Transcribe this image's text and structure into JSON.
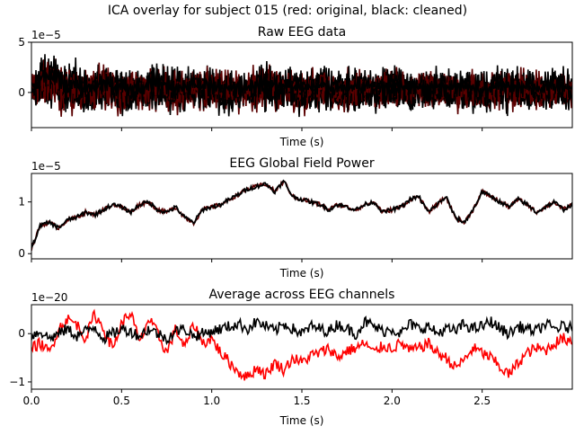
{
  "suptitle": "ICA overlay for subject 015 (red: original, black: cleaned)",
  "colors": {
    "original": "#ff0000",
    "cleaned": "#000000",
    "axes": "#000000",
    "background": "#ffffff"
  },
  "chart_data": [
    {
      "type": "line",
      "title": "Raw EEG data",
      "xlabel": "Time (s)",
      "ylabel": "",
      "offset_text": "1e−5",
      "xlim": [
        0,
        3.0
      ],
      "ylim": [
        -3.5,
        5.0
      ],
      "xticks": [
        0.0,
        0.5,
        1.0,
        1.5,
        2.0,
        2.5
      ],
      "xtick_labels": [],
      "yticks": [
        0,
        5
      ],
      "ytick_labels": [
        "0",
        "5"
      ],
      "note": "multi-channel traces overlaid, roughly -3 to 4.5 (x1e-5)",
      "series": [
        {
          "color_key": "original",
          "values_x": [
            0.0,
            0.1,
            0.2,
            0.3,
            0.4,
            0.5,
            0.6,
            0.7,
            0.8,
            0.9,
            1.0,
            1.1,
            1.2,
            1.3,
            1.4,
            1.5,
            1.6,
            1.7,
            1.8,
            1.9,
            2.0,
            2.1,
            2.2,
            2.3,
            2.4,
            2.5,
            2.6,
            2.7,
            2.8,
            2.9,
            3.0
          ],
          "band_top": [
            3.2,
            4.5,
            3.8,
            2.9,
            3.5,
            3.1,
            2.8,
            3.6,
            3.2,
            2.9,
            3.3,
            3.0,
            2.7,
            3.9,
            3.1,
            2.8,
            3.2,
            2.6,
            3.0,
            2.9,
            3.5,
            2.7,
            3.1,
            2.8,
            3.0,
            2.6,
            3.2,
            2.9,
            2.7,
            3.0,
            2.8
          ],
          "band_bottom": [
            -2.3,
            -2.1,
            -2.8,
            -2.5,
            -2.3,
            -2.6,
            -2.2,
            -2.4,
            -2.9,
            -2.2,
            -2.5,
            -2.6,
            -2.3,
            -2.7,
            -2.5,
            -2.6,
            -2.3,
            -2.4,
            -2.6,
            -2.2,
            -2.5,
            -2.3,
            -2.4,
            -2.2,
            -2.5,
            -2.6,
            -2.4,
            -2.3,
            -2.5,
            -2.2,
            -2.4
          ]
        }
      ]
    },
    {
      "type": "line",
      "title": "EEG Global Field Power",
      "xlabel": "Time (s)",
      "ylabel": "",
      "offset_text": "1e−5",
      "xlim": [
        0,
        3.0
      ],
      "ylim": [
        -0.1,
        1.55
      ],
      "xticks": [
        0.0,
        0.5,
        1.0,
        1.5,
        2.0,
        2.5
      ],
      "xtick_labels": [],
      "yticks": [
        0,
        1
      ],
      "ytick_labels": [
        "0",
        "1"
      ],
      "series": [
        {
          "name": "",
          "color_key": "original",
          "x": [
            0.0,
            0.05,
            0.1,
            0.15,
            0.2,
            0.25,
            0.3,
            0.35,
            0.4,
            0.45,
            0.5,
            0.55,
            0.6,
            0.65,
            0.7,
            0.75,
            0.8,
            0.85,
            0.9,
            0.95,
            1.0,
            1.05,
            1.1,
            1.15,
            1.2,
            1.25,
            1.3,
            1.35,
            1.4,
            1.45,
            1.5,
            1.55,
            1.6,
            1.65,
            1.7,
            1.75,
            1.8,
            1.85,
            1.9,
            1.95,
            2.0,
            2.05,
            2.1,
            2.15,
            2.2,
            2.25,
            2.3,
            2.35,
            2.4,
            2.45,
            2.5,
            2.55,
            2.6,
            2.65,
            2.7,
            2.75,
            2.8,
            2.85,
            2.9,
            2.95,
            3.0
          ],
          "values": [
            0.1,
            0.55,
            0.6,
            0.5,
            0.65,
            0.7,
            0.8,
            0.75,
            0.85,
            0.95,
            0.9,
            0.8,
            0.95,
            1.0,
            0.85,
            0.8,
            0.9,
            0.7,
            0.6,
            0.85,
            0.9,
            0.95,
            1.05,
            1.15,
            1.25,
            1.3,
            1.35,
            1.2,
            1.4,
            1.1,
            1.05,
            1.0,
            0.95,
            0.85,
            0.95,
            0.9,
            0.85,
            0.95,
            1.0,
            0.8,
            0.85,
            0.9,
            1.05,
            1.1,
            0.8,
            0.95,
            1.1,
            0.7,
            0.6,
            0.85,
            1.2,
            1.1,
            1.0,
            0.9,
            1.05,
            0.95,
            0.8,
            0.9,
            1.0,
            0.85,
            0.95
          ]
        },
        {
          "name": "",
          "color_key": "cleaned",
          "x": [
            0.0,
            0.05,
            0.1,
            0.15,
            0.2,
            0.25,
            0.3,
            0.35,
            0.4,
            0.45,
            0.5,
            0.55,
            0.6,
            0.65,
            0.7,
            0.75,
            0.8,
            0.85,
            0.9,
            0.95,
            1.0,
            1.05,
            1.1,
            1.15,
            1.2,
            1.25,
            1.3,
            1.35,
            1.4,
            1.45,
            1.5,
            1.55,
            1.6,
            1.65,
            1.7,
            1.75,
            1.8,
            1.85,
            1.9,
            1.95,
            2.0,
            2.05,
            2.1,
            2.15,
            2.2,
            2.25,
            2.3,
            2.35,
            2.4,
            2.45,
            2.5,
            2.55,
            2.6,
            2.65,
            2.7,
            2.75,
            2.8,
            2.85,
            2.9,
            2.95,
            3.0
          ],
          "values": [
            0.1,
            0.55,
            0.6,
            0.5,
            0.65,
            0.7,
            0.8,
            0.75,
            0.85,
            0.95,
            0.9,
            0.8,
            0.95,
            1.0,
            0.85,
            0.8,
            0.9,
            0.7,
            0.6,
            0.85,
            0.9,
            0.95,
            1.05,
            1.15,
            1.25,
            1.3,
            1.35,
            1.2,
            1.4,
            1.1,
            1.05,
            1.0,
            0.95,
            0.85,
            0.95,
            0.9,
            0.85,
            0.95,
            1.0,
            0.8,
            0.85,
            0.9,
            1.05,
            1.1,
            0.8,
            0.95,
            1.1,
            0.7,
            0.6,
            0.85,
            1.2,
            1.1,
            1.0,
            0.9,
            1.05,
            0.95,
            0.8,
            0.9,
            1.0,
            0.85,
            0.95
          ]
        }
      ]
    },
    {
      "type": "line",
      "title": "Average across EEG channels",
      "xlabel": "Time (s)",
      "ylabel": "",
      "offset_text": "1e−20",
      "xlim": [
        0,
        3.0
      ],
      "ylim": [
        -1.15,
        0.6
      ],
      "xticks": [
        0.0,
        0.5,
        1.0,
        1.5,
        2.0,
        2.5
      ],
      "xtick_labels": [
        "0.0",
        "0.5",
        "1.0",
        "1.5",
        "2.0",
        "2.5"
      ],
      "yticks": [
        -1,
        0
      ],
      "ytick_labels": [
        "−1",
        "0"
      ],
      "series": [
        {
          "name": "",
          "color_key": "original",
          "x": [
            0.0,
            0.05,
            0.1,
            0.15,
            0.2,
            0.25,
            0.3,
            0.35,
            0.4,
            0.45,
            0.5,
            0.55,
            0.6,
            0.65,
            0.7,
            0.75,
            0.8,
            0.85,
            0.9,
            0.95,
            1.0,
            1.05,
            1.1,
            1.15,
            1.2,
            1.25,
            1.3,
            1.35,
            1.4,
            1.45,
            1.5,
            1.55,
            1.6,
            1.65,
            1.7,
            1.75,
            1.8,
            1.85,
            1.9,
            1.95,
            2.0,
            2.05,
            2.1,
            2.15,
            2.2,
            2.25,
            2.3,
            2.35,
            2.4,
            2.45,
            2.5,
            2.55,
            2.6,
            2.65,
            2.7,
            2.75,
            2.8,
            2.85,
            2.9,
            2.95,
            3.0
          ],
          "values": [
            -0.3,
            -0.2,
            -0.4,
            0.1,
            0.3,
            0.2,
            -0.1,
            0.4,
            0.1,
            -0.3,
            0.2,
            0.45,
            -0.2,
            0.3,
            0.0,
            -0.4,
            0.1,
            -0.3,
            0.2,
            -0.2,
            -0.1,
            -0.4,
            -0.6,
            -0.8,
            -0.9,
            -0.7,
            -0.85,
            -0.6,
            -0.75,
            -0.5,
            -0.6,
            -0.45,
            -0.4,
            -0.3,
            -0.5,
            -0.35,
            -0.3,
            -0.2,
            -0.4,
            -0.25,
            -0.3,
            -0.2,
            -0.35,
            -0.3,
            -0.2,
            -0.4,
            -0.5,
            -0.7,
            -0.55,
            -0.3,
            -0.4,
            -0.5,
            -0.7,
            -0.85,
            -0.6,
            -0.4,
            -0.3,
            -0.35,
            -0.2,
            -0.1,
            -0.15
          ]
        },
        {
          "name": "",
          "color_key": "cleaned",
          "x": [
            0.0,
            0.05,
            0.1,
            0.15,
            0.2,
            0.25,
            0.3,
            0.35,
            0.4,
            0.45,
            0.5,
            0.55,
            0.6,
            0.65,
            0.7,
            0.75,
            0.8,
            0.85,
            0.9,
            0.95,
            1.0,
            1.05,
            1.1,
            1.15,
            1.2,
            1.25,
            1.3,
            1.35,
            1.4,
            1.45,
            1.5,
            1.55,
            1.6,
            1.65,
            1.7,
            1.75,
            1.8,
            1.85,
            1.9,
            1.95,
            2.0,
            2.05,
            2.1,
            2.15,
            2.2,
            2.25,
            2.3,
            2.35,
            2.4,
            2.45,
            2.5,
            2.55,
            2.6,
            2.65,
            2.7,
            2.75,
            2.8,
            2.85,
            2.9,
            2.95,
            3.0
          ],
          "values": [
            -0.05,
            0.05,
            -0.1,
            0.0,
            0.1,
            -0.05,
            0.05,
            0.15,
            -0.1,
            0.0,
            0.1,
            0.05,
            -0.05,
            0.1,
            0.0,
            -0.1,
            0.05,
            0.1,
            -0.05,
            0.0,
            0.05,
            0.1,
            0.15,
            0.2,
            0.1,
            0.25,
            0.15,
            0.05,
            0.2,
            0.1,
            0.0,
            0.15,
            0.1,
            0.05,
            0.2,
            0.1,
            0.0,
            0.25,
            0.15,
            0.05,
            0.1,
            0.0,
            0.2,
            0.1,
            0.15,
            0.0,
            0.1,
            0.05,
            0.2,
            0.1,
            0.15,
            0.25,
            0.1,
            0.0,
            0.15,
            0.1,
            0.05,
            0.2,
            0.1,
            0.15,
            0.1
          ]
        }
      ]
    }
  ]
}
